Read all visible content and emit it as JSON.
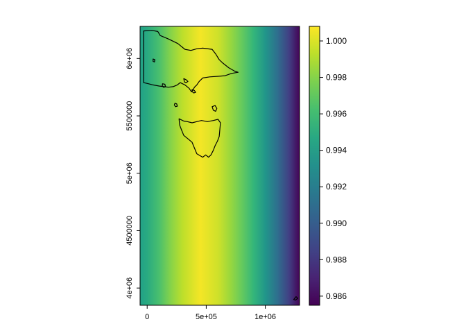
{
  "chart_data": {
    "type": "heatmap",
    "title": "",
    "xlabel": "",
    "ylabel": "",
    "xlim": [
      -60000,
      1290000
    ],
    "ylim": [
      3850000,
      6280000
    ],
    "x_ticks": [
      {
        "value": 0,
        "label": "0"
      },
      {
        "value": 500000,
        "label": "5e+05"
      },
      {
        "value": 1000000,
        "label": "1e+06"
      }
    ],
    "y_ticks": [
      {
        "value": 4000000,
        "label": "4e+06"
      },
      {
        "value": 4500000,
        "label": "4500000"
      },
      {
        "value": 5000000,
        "label": "5e+06"
      },
      {
        "value": 5500000,
        "label": "5500000"
      },
      {
        "value": 6000000,
        "label": "6e+06"
      }
    ],
    "field": {
      "description": "value varies along x only; maximum near x = 450000",
      "profile_x": [
        -60000,
        0,
        100000,
        200000,
        300000,
        450000,
        600000,
        700000,
        800000,
        900000,
        1000000,
        1100000,
        1200000,
        1290000
      ],
      "profile_value": [
        0.9942,
        0.9948,
        0.9963,
        0.998,
        0.9993,
        1.0006,
        0.9997,
        0.9985,
        0.9972,
        0.9956,
        0.9935,
        0.9911,
        0.9884,
        0.9856
      ]
    },
    "legend": {
      "position": "right",
      "colormap": "viridis",
      "min": 0.9855,
      "max": 1.0008,
      "ticks": [
        0.986,
        0.988,
        0.99,
        0.992,
        0.994,
        0.996,
        0.998,
        1.0
      ],
      "tick_labels": [
        "0.986",
        "0.988",
        "0.990",
        "0.992",
        "0.994",
        "0.996",
        "0.998",
        "1.000"
      ]
    },
    "outline_color": "#000000",
    "outlines": [
      {
        "name": "mainland",
        "points": [
          [
            -30000,
            6240000
          ],
          [
            40000,
            6245000
          ],
          [
            90000,
            6235000
          ],
          [
            110000,
            6200000
          ],
          [
            180000,
            6170000
          ],
          [
            260000,
            6130000
          ],
          [
            320000,
            6080000
          ],
          [
            370000,
            6070000
          ],
          [
            420000,
            6085000
          ],
          [
            470000,
            6090000
          ],
          [
            550000,
            6080000
          ],
          [
            580000,
            6040000
          ],
          [
            610000,
            5990000
          ],
          [
            640000,
            5960000
          ],
          [
            690000,
            5920000
          ],
          [
            740000,
            5890000
          ],
          [
            770000,
            5880000
          ],
          [
            715000,
            5870000
          ],
          [
            660000,
            5850000
          ],
          [
            600000,
            5845000
          ],
          [
            530000,
            5840000
          ],
          [
            470000,
            5830000
          ],
          [
            440000,
            5800000
          ],
          [
            420000,
            5770000
          ],
          [
            400000,
            5750000
          ],
          [
            390000,
            5730000
          ],
          [
            375000,
            5710000
          ],
          [
            355000,
            5740000
          ],
          [
            320000,
            5770000
          ],
          [
            280000,
            5790000
          ],
          [
            255000,
            5770000
          ],
          [
            220000,
            5755000
          ],
          [
            180000,
            5750000
          ],
          [
            140000,
            5755000
          ],
          [
            100000,
            5760000
          ],
          [
            50000,
            5770000
          ],
          [
            10000,
            5780000
          ],
          [
            -30000,
            5790000
          ]
        ]
      },
      {
        "name": "tasmania",
        "points": [
          [
            270000,
            5475000
          ],
          [
            310000,
            5455000
          ],
          [
            340000,
            5450000
          ],
          [
            380000,
            5440000
          ],
          [
            420000,
            5450000
          ],
          [
            460000,
            5460000
          ],
          [
            510000,
            5450000
          ],
          [
            560000,
            5460000
          ],
          [
            600000,
            5470000
          ],
          [
            620000,
            5440000
          ],
          [
            615000,
            5380000
          ],
          [
            610000,
            5320000
          ],
          [
            595000,
            5280000
          ],
          [
            575000,
            5240000
          ],
          [
            560000,
            5200000
          ],
          [
            540000,
            5160000
          ],
          [
            520000,
            5140000
          ],
          [
            495000,
            5160000
          ],
          [
            470000,
            5140000
          ],
          [
            445000,
            5155000
          ],
          [
            420000,
            5170000
          ],
          [
            400000,
            5220000
          ],
          [
            380000,
            5270000
          ],
          [
            345000,
            5300000
          ],
          [
            310000,
            5330000
          ],
          [
            290000,
            5380000
          ],
          [
            275000,
            5420000
          ]
        ]
      },
      {
        "name": "island-north-1",
        "points": [
          [
            310000,
            5825000
          ],
          [
            330000,
            5815000
          ],
          [
            345000,
            5800000
          ],
          [
            330000,
            5790000
          ],
          [
            315000,
            5795000
          ]
        ]
      },
      {
        "name": "island-north-2",
        "points": [
          [
            380000,
            5730000
          ],
          [
            400000,
            5720000
          ],
          [
            410000,
            5705000
          ],
          [
            395000,
            5700000
          ],
          [
            380000,
            5712000
          ]
        ]
      },
      {
        "name": "island-bass-1",
        "points": [
          [
            550000,
            5580000
          ],
          [
            575000,
            5590000
          ],
          [
            590000,
            5565000
          ],
          [
            580000,
            5540000
          ],
          [
            560000,
            5550000
          ]
        ]
      },
      {
        "name": "island-bass-2",
        "points": [
          [
            235000,
            5610000
          ],
          [
            250000,
            5605000
          ],
          [
            255000,
            5585000
          ],
          [
            240000,
            5580000
          ],
          [
            230000,
            5595000
          ]
        ]
      },
      {
        "name": "island-bay-1",
        "points": [
          [
            50000,
            5995000
          ],
          [
            65000,
            5990000
          ],
          [
            62000,
            5970000
          ],
          [
            50000,
            5975000
          ]
        ]
      },
      {
        "name": "island-bay-2",
        "points": [
          [
            130000,
            5780000
          ],
          [
            150000,
            5775000
          ],
          [
            155000,
            5755000
          ],
          [
            140000,
            5748000
          ],
          [
            128000,
            5762000
          ]
        ]
      },
      {
        "name": "island-se",
        "points": [
          [
            1240000,
            3900000
          ],
          [
            1260000,
            3925000
          ],
          [
            1275000,
            3910000
          ],
          [
            1255000,
            3895000
          ]
        ]
      }
    ]
  }
}
